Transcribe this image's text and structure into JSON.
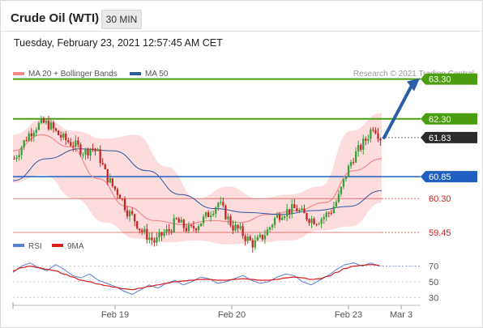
{
  "header": {
    "title": "Crude Oil (WTI)",
    "timeframe": "30 MIN",
    "datetime": "Tuesday, February 23, 2021 12:57:45 AM CET"
  },
  "colors": {
    "resistance": "#4a9e10",
    "current": "#2b2b2b",
    "pivot": "#1f5fbf",
    "support": "#cc1f1f",
    "band_fill": "#fbd6d6",
    "ma20": "#f08a8a",
    "ma50": "#2d57a0",
    "rsi": "#5b7fd6",
    "rsi_ma": "#d91c1c",
    "arrow": "#2b5ea8"
  },
  "chart_data": [
    {
      "type": "line",
      "subtype": "candlestick",
      "legend": [
        {
          "label": "MA 20 + Bollinger Bands",
          "color": "#f08a8a"
        },
        {
          "label": "MA 50",
          "color": "#2d57a0"
        }
      ],
      "credit": "Research © 2021 Trading Central",
      "ylim": [
        58.8,
        63.8
      ],
      "x_ticks": [
        "Feb 19",
        "Feb 20",
        "Feb 23",
        "Mar 3"
      ],
      "levels": [
        {
          "value": 63.3,
          "label": "63.30",
          "kind": "resistance"
        },
        {
          "value": 62.3,
          "label": "62.30",
          "kind": "resistance"
        },
        {
          "value": 61.83,
          "label": "61.83",
          "kind": "current"
        },
        {
          "value": 60.85,
          "label": "60.85",
          "kind": "pivot"
        },
        {
          "value": 60.3,
          "label": "60.30",
          "kind": "support"
        },
        {
          "value": 59.45,
          "label": "59.45",
          "kind": "support"
        }
      ],
      "close_path": [
        61.3,
        61.6,
        61.9,
        62.1,
        62.2,
        62.15,
        61.95,
        61.8,
        61.7,
        61.6,
        61.45,
        61.6,
        61.4,
        60.9,
        60.6,
        60.4,
        60.0,
        59.8,
        59.5,
        59.35,
        59.2,
        59.4,
        59.5,
        59.75,
        59.6,
        59.5,
        59.65,
        59.8,
        60.0,
        60.2,
        59.9,
        59.6,
        59.5,
        59.3,
        59.15,
        59.3,
        59.5,
        59.8,
        59.95,
        60.0,
        60.05,
        59.9,
        59.8,
        59.75,
        59.85,
        60.0,
        60.3,
        60.85,
        61.3,
        61.55,
        61.8,
        62.15,
        61.83
      ],
      "ma20_path": [
        61.5,
        61.9,
        61.6,
        60.8,
        60.1,
        59.75,
        59.65,
        59.75,
        59.7,
        59.9,
        60.0,
        60.2,
        61.0,
        61.3
      ],
      "ma50_path": [
        60.75,
        61.3,
        61.55,
        61.5,
        61.0,
        60.4,
        60.05,
        59.95,
        59.9,
        60.0,
        60.1,
        60.5
      ],
      "band_upper": [
        61.9,
        62.3,
        62.0,
        61.8,
        61.9,
        61.1,
        60.3,
        60.6,
        60.3,
        60.4,
        60.6,
        62.0,
        62.45
      ],
      "band_lower": [
        60.7,
        60.9,
        60.3,
        59.7,
        59.3,
        59.2,
        59.25,
        59.15,
        59.2,
        59.25,
        59.5,
        59.6,
        60.2
      ],
      "projection": {
        "from": 61.83,
        "to": 63.3
      }
    },
    {
      "type": "line",
      "legend": [
        {
          "label": "RSI",
          "color": "#5b7fd6"
        },
        {
          "label": "9MA",
          "color": "#d91c1c"
        }
      ],
      "ylim": [
        22,
        82
      ],
      "y_ticks": [
        70,
        50,
        30
      ],
      "series": [
        {
          "name": "RSI",
          "values": [
            62,
            70,
            74,
            68,
            64,
            72,
            66,
            58,
            55,
            60,
            52,
            48,
            44,
            38,
            34,
            40,
            46,
            42,
            48,
            52,
            46,
            50,
            56,
            54,
            48,
            50,
            54,
            58,
            52,
            48,
            50,
            56,
            60,
            58,
            50,
            46,
            52,
            58,
            66,
            72,
            74,
            70,
            74,
            70
          ]
        },
        {
          "name": "9MA",
          "values": [
            64,
            68,
            70,
            68,
            66,
            64,
            60,
            56,
            52,
            50,
            47,
            45,
            43,
            41,
            40,
            42,
            44,
            46,
            48,
            50,
            51,
            52,
            53,
            53,
            52,
            52,
            53,
            54,
            53,
            52,
            52,
            53,
            55,
            56,
            55,
            53,
            54,
            57,
            62,
            67,
            70,
            71,
            72,
            71
          ]
        }
      ]
    }
  ]
}
